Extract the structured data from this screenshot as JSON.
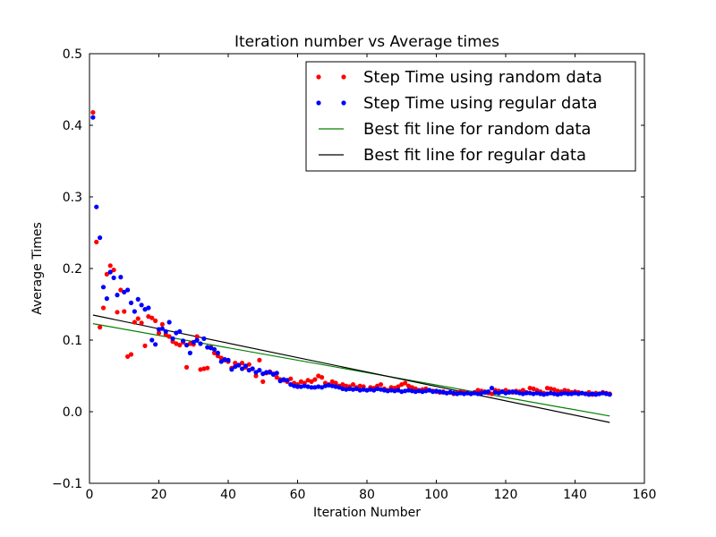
{
  "chart_data": {
    "type": "scatter",
    "title": "Iteration number vs Average times",
    "xlabel": "Iteration Number",
    "ylabel": "Average Times",
    "xlim": [
      0,
      160
    ],
    "ylim": [
      -0.1,
      0.5
    ],
    "xticks": [
      0,
      20,
      40,
      60,
      80,
      100,
      120,
      140,
      160
    ],
    "yticks": [
      -0.1,
      0.0,
      0.1,
      0.2,
      0.3,
      0.4,
      0.5
    ],
    "xtick_labels": [
      "0",
      "20",
      "40",
      "60",
      "80",
      "100",
      "120",
      "140",
      "160"
    ],
    "ytick_labels": [
      "−0.1",
      "0.0",
      "0.1",
      "0.2",
      "0.3",
      "0.4",
      "0.5"
    ],
    "grid": false,
    "legend": "top-right",
    "series": [
      {
        "name": "Step Time using random data",
        "kind": "scatter",
        "color": "#ff0000",
        "points": [
          [
            1,
            0.418
          ],
          [
            2,
            0.237
          ],
          [
            3,
            0.118
          ],
          [
            4,
            0.145
          ],
          [
            5,
            0.192
          ],
          [
            6,
            0.204
          ],
          [
            7,
            0.198
          ],
          [
            8,
            0.139
          ],
          [
            9,
            0.17
          ],
          [
            10,
            0.14
          ],
          [
            11,
            0.077
          ],
          [
            12,
            0.08
          ],
          [
            13,
            0.125
          ],
          [
            14,
            0.13
          ],
          [
            15,
            0.124
          ],
          [
            16,
            0.092
          ],
          [
            17,
            0.133
          ],
          [
            18,
            0.131
          ],
          [
            19,
            0.127
          ],
          [
            20,
            0.11
          ],
          [
            21,
            0.122
          ],
          [
            22,
            0.108
          ],
          [
            23,
            0.105
          ],
          [
            24,
            0.098
          ],
          [
            25,
            0.095
          ],
          [
            26,
            0.093
          ],
          [
            27,
            0.097
          ],
          [
            28,
            0.062
          ],
          [
            29,
            0.095
          ],
          [
            30,
            0.094
          ],
          [
            31,
            0.105
          ],
          [
            32,
            0.059
          ],
          [
            33,
            0.06
          ],
          [
            34,
            0.061
          ],
          [
            35,
            0.09
          ],
          [
            36,
            0.082
          ],
          [
            37,
            0.078
          ],
          [
            38,
            0.075
          ],
          [
            39,
            0.072
          ],
          [
            40,
            0.07
          ],
          [
            41,
            0.061
          ],
          [
            42,
            0.068
          ],
          [
            43,
            0.065
          ],
          [
            44,
            0.068
          ],
          [
            45,
            0.062
          ],
          [
            46,
            0.066
          ],
          [
            47,
            0.06
          ],
          [
            48,
            0.05
          ],
          [
            49,
            0.072
          ],
          [
            50,
            0.042
          ],
          [
            51,
            0.054
          ],
          [
            52,
            0.056
          ],
          [
            53,
            0.053
          ],
          [
            54,
            0.048
          ],
          [
            55,
            0.045
          ],
          [
            56,
            0.044
          ],
          [
            57,
            0.042
          ],
          [
            58,
            0.046
          ],
          [
            59,
            0.04
          ],
          [
            60,
            0.038
          ],
          [
            61,
            0.042
          ],
          [
            62,
            0.04
          ],
          [
            63,
            0.044
          ],
          [
            64,
            0.042
          ],
          [
            65,
            0.045
          ],
          [
            66,
            0.05
          ],
          [
            67,
            0.048
          ],
          [
            68,
            0.04
          ],
          [
            69,
            0.038
          ],
          [
            70,
            0.042
          ],
          [
            71,
            0.04
          ],
          [
            72,
            0.036
          ],
          [
            73,
            0.038
          ],
          [
            74,
            0.036
          ],
          [
            75,
            0.035
          ],
          [
            76,
            0.038
          ],
          [
            77,
            0.034
          ],
          [
            78,
            0.036
          ],
          [
            79,
            0.035
          ],
          [
            80,
            0.03
          ],
          [
            81,
            0.034
          ],
          [
            82,
            0.033
          ],
          [
            83,
            0.036
          ],
          [
            84,
            0.038
          ],
          [
            85,
            0.032
          ],
          [
            86,
            0.03
          ],
          [
            87,
            0.034
          ],
          [
            88,
            0.033
          ],
          [
            89,
            0.035
          ],
          [
            90,
            0.038
          ],
          [
            91,
            0.04
          ],
          [
            92,
            0.036
          ],
          [
            93,
            0.034
          ],
          [
            94,
            0.032
          ],
          [
            95,
            0.03
          ],
          [
            96,
            0.031
          ],
          [
            97,
            0.032
          ],
          [
            98,
            0.03
          ],
          [
            99,
            0.029
          ],
          [
            100,
            0.028
          ],
          [
            101,
            0.027
          ],
          [
            102,
            0.028
          ],
          [
            103,
            0.026
          ],
          [
            104,
            0.027
          ],
          [
            105,
            0.025
          ],
          [
            106,
            0.026
          ],
          [
            107,
            0.028
          ],
          [
            108,
            0.027
          ],
          [
            109,
            0.026
          ],
          [
            110,
            0.025
          ],
          [
            111,
            0.027
          ],
          [
            112,
            0.03
          ],
          [
            113,
            0.029
          ],
          [
            114,
            0.028
          ],
          [
            115,
            0.026
          ],
          [
            116,
            0.025
          ],
          [
            117,
            0.03
          ],
          [
            118,
            0.029
          ],
          [
            119,
            0.028
          ],
          [
            120,
            0.03
          ],
          [
            121,
            0.028
          ],
          [
            122,
            0.027
          ],
          [
            123,
            0.029
          ],
          [
            124,
            0.028
          ],
          [
            125,
            0.03
          ],
          [
            126,
            0.027
          ],
          [
            127,
            0.033
          ],
          [
            128,
            0.032
          ],
          [
            129,
            0.03
          ],
          [
            130,
            0.028
          ],
          [
            131,
            0.026
          ],
          [
            132,
            0.033
          ],
          [
            133,
            0.032
          ],
          [
            134,
            0.031
          ],
          [
            135,
            0.029
          ],
          [
            136,
            0.028
          ],
          [
            137,
            0.03
          ],
          [
            138,
            0.029
          ],
          [
            139,
            0.027
          ],
          [
            140,
            0.028
          ],
          [
            141,
            0.027
          ],
          [
            142,
            0.026
          ],
          [
            143,
            0.025
          ],
          [
            144,
            0.027
          ],
          [
            145,
            0.024
          ],
          [
            146,
            0.026
          ],
          [
            147,
            0.025
          ],
          [
            148,
            0.027
          ],
          [
            149,
            0.026
          ],
          [
            150,
            0.025
          ]
        ]
      },
      {
        "name": "Step Time using regular data",
        "kind": "scatter",
        "color": "#0000ff",
        "points": [
          [
            1,
            0.411
          ],
          [
            2,
            0.286
          ],
          [
            3,
            0.243
          ],
          [
            4,
            0.174
          ],
          [
            5,
            0.158
          ],
          [
            6,
            0.195
          ],
          [
            7,
            0.187
          ],
          [
            8,
            0.163
          ],
          [
            9,
            0.188
          ],
          [
            10,
            0.167
          ],
          [
            11,
            0.17
          ],
          [
            12,
            0.152
          ],
          [
            13,
            0.14
          ],
          [
            14,
            0.157
          ],
          [
            15,
            0.149
          ],
          [
            16,
            0.143
          ],
          [
            17,
            0.145
          ],
          [
            18,
            0.1
          ],
          [
            19,
            0.094
          ],
          [
            20,
            0.115
          ],
          [
            21,
            0.116
          ],
          [
            22,
            0.112
          ],
          [
            23,
            0.125
          ],
          [
            24,
            0.102
          ],
          [
            25,
            0.11
          ],
          [
            26,
            0.112
          ],
          [
            27,
            0.099
          ],
          [
            28,
            0.093
          ],
          [
            29,
            0.082
          ],
          [
            30,
            0.097
          ],
          [
            31,
            0.1
          ],
          [
            32,
            0.095
          ],
          [
            33,
            0.102
          ],
          [
            34,
            0.09
          ],
          [
            35,
            0.089
          ],
          [
            36,
            0.087
          ],
          [
            37,
            0.082
          ],
          [
            38,
            0.07
          ],
          [
            39,
            0.073
          ],
          [
            40,
            0.072
          ],
          [
            41,
            0.059
          ],
          [
            42,
            0.063
          ],
          [
            43,
            0.065
          ],
          [
            44,
            0.06
          ],
          [
            45,
            0.064
          ],
          [
            46,
            0.058
          ],
          [
            47,
            0.06
          ],
          [
            48,
            0.055
          ],
          [
            49,
            0.058
          ],
          [
            50,
            0.053
          ],
          [
            51,
            0.055
          ],
          [
            52,
            0.055
          ],
          [
            53,
            0.052
          ],
          [
            54,
            0.054
          ],
          [
            55,
            0.043
          ],
          [
            56,
            0.045
          ],
          [
            57,
            0.044
          ],
          [
            58,
            0.038
          ],
          [
            59,
            0.036
          ],
          [
            60,
            0.035
          ],
          [
            61,
            0.035
          ],
          [
            62,
            0.036
          ],
          [
            63,
            0.035
          ],
          [
            64,
            0.034
          ],
          [
            65,
            0.034
          ],
          [
            66,
            0.035
          ],
          [
            67,
            0.034
          ],
          [
            68,
            0.036
          ],
          [
            69,
            0.037
          ],
          [
            70,
            0.036
          ],
          [
            71,
            0.035
          ],
          [
            72,
            0.034
          ],
          [
            73,
            0.032
          ],
          [
            74,
            0.031
          ],
          [
            75,
            0.032
          ],
          [
            76,
            0.031
          ],
          [
            77,
            0.032
          ],
          [
            78,
            0.03
          ],
          [
            79,
            0.031
          ],
          [
            80,
            0.03
          ],
          [
            81,
            0.031
          ],
          [
            82,
            0.03
          ],
          [
            83,
            0.032
          ],
          [
            84,
            0.031
          ],
          [
            85,
            0.03
          ],
          [
            86,
            0.029
          ],
          [
            87,
            0.03
          ],
          [
            88,
            0.029
          ],
          [
            89,
            0.03
          ],
          [
            90,
            0.028
          ],
          [
            91,
            0.029
          ],
          [
            92,
            0.03
          ],
          [
            93,
            0.029
          ],
          [
            94,
            0.028
          ],
          [
            95,
            0.029
          ],
          [
            96,
            0.028
          ],
          [
            97,
            0.029
          ],
          [
            98,
            0.03
          ],
          [
            99,
            0.028
          ],
          [
            100,
            0.029
          ],
          [
            101,
            0.028
          ],
          [
            102,
            0.027
          ],
          [
            103,
            0.026
          ],
          [
            104,
            0.027
          ],
          [
            105,
            0.026
          ],
          [
            106,
            0.025
          ],
          [
            107,
            0.026
          ],
          [
            108,
            0.025
          ],
          [
            109,
            0.026
          ],
          [
            110,
            0.025
          ],
          [
            111,
            0.026
          ],
          [
            112,
            0.025
          ],
          [
            113,
            0.026
          ],
          [
            114,
            0.027
          ],
          [
            115,
            0.028
          ],
          [
            116,
            0.033
          ],
          [
            117,
            0.027
          ],
          [
            118,
            0.026
          ],
          [
            119,
            0.028
          ],
          [
            120,
            0.026
          ],
          [
            121,
            0.027
          ],
          [
            122,
            0.028
          ],
          [
            123,
            0.027
          ],
          [
            124,
            0.026
          ],
          [
            125,
            0.025
          ],
          [
            126,
            0.026
          ],
          [
            127,
            0.026
          ],
          [
            128,
            0.025
          ],
          [
            129,
            0.026
          ],
          [
            130,
            0.025
          ],
          [
            131,
            0.024
          ],
          [
            132,
            0.025
          ],
          [
            133,
            0.026
          ],
          [
            134,
            0.025
          ],
          [
            135,
            0.024
          ],
          [
            136,
            0.025
          ],
          [
            137,
            0.026
          ],
          [
            138,
            0.025
          ],
          [
            139,
            0.025
          ],
          [
            140,
            0.026
          ],
          [
            141,
            0.025
          ],
          [
            142,
            0.026
          ],
          [
            143,
            0.025
          ],
          [
            144,
            0.024
          ],
          [
            145,
            0.025
          ],
          [
            146,
            0.024
          ],
          [
            147,
            0.025
          ],
          [
            148,
            0.026
          ],
          [
            149,
            0.025
          ],
          [
            150,
            0.024
          ]
        ]
      },
      {
        "name": "Best fit line for random data",
        "kind": "line",
        "color": "#008000",
        "points": [
          [
            1,
            0.123
          ],
          [
            150,
            -0.006
          ]
        ]
      },
      {
        "name": "Best fit line for regular data",
        "kind": "line",
        "color": "#000000",
        "points": [
          [
            1,
            0.135
          ],
          [
            150,
            -0.015
          ]
        ]
      }
    ]
  }
}
